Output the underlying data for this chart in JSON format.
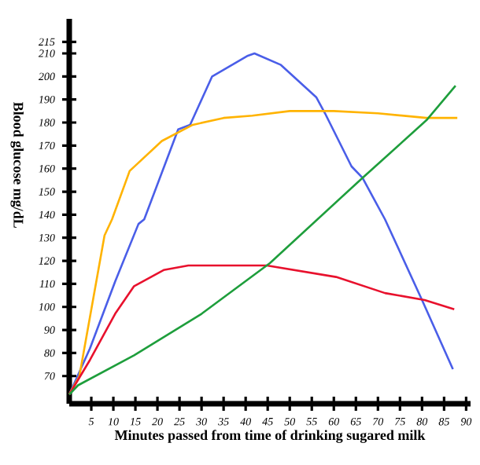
{
  "chart_data": {
    "type": "line",
    "xlabel": "Minutes passed from time of drinking sugared milk",
    "ylabel": "Blood glucose mg/dL",
    "xlim": [
      0,
      91
    ],
    "ylim": [
      58,
      225
    ],
    "xticks": [
      5,
      10,
      15,
      20,
      25,
      30,
      35,
      40,
      45,
      50,
      55,
      60,
      65,
      70,
      75,
      80,
      85,
      90
    ],
    "yticks": [
      70,
      80,
      90,
      100,
      110,
      120,
      130,
      140,
      150,
      160,
      170,
      180,
      190,
      200,
      210,
      215
    ],
    "series": [
      {
        "color": "#4a5ee8",
        "x": [
          0,
          4.7,
          10.4,
          15.7,
          17,
          24.7,
          27.4,
          32.4,
          40.5,
          42,
          48,
          56,
          58,
          64,
          66.5,
          71.6,
          80,
          87
        ],
        "values": [
          62,
          82,
          111,
          136,
          138,
          177,
          179,
          200,
          209,
          210,
          205,
          191,
          184,
          161,
          156,
          138,
          103,
          73
        ]
      },
      {
        "color": "#ffb300",
        "x": [
          0,
          2.3,
          8,
          9.7,
          13.7,
          21,
          28,
          35,
          41.5,
          50,
          60,
          70,
          81,
          88
        ],
        "values": [
          62,
          70,
          131,
          138,
          159,
          172,
          179,
          182,
          183,
          185,
          185,
          184,
          182,
          182
        ]
      },
      {
        "color": "#e8112d",
        "x": [
          0,
          4.7,
          10.4,
          14.7,
          21.4,
          27,
          38,
          44.8,
          60.5,
          71.6,
          80.6,
          87.3
        ],
        "values": [
          62,
          77,
          97,
          109,
          116,
          118,
          118,
          118,
          113,
          106,
          103,
          99
        ]
      },
      {
        "color": "#1e9e3c",
        "x": [
          0,
          2,
          14.7,
          30,
          45.5,
          66.5,
          81,
          87.6
        ],
        "values": [
          62,
          66,
          79,
          97,
          119,
          156,
          181,
          196
        ]
      }
    ]
  }
}
